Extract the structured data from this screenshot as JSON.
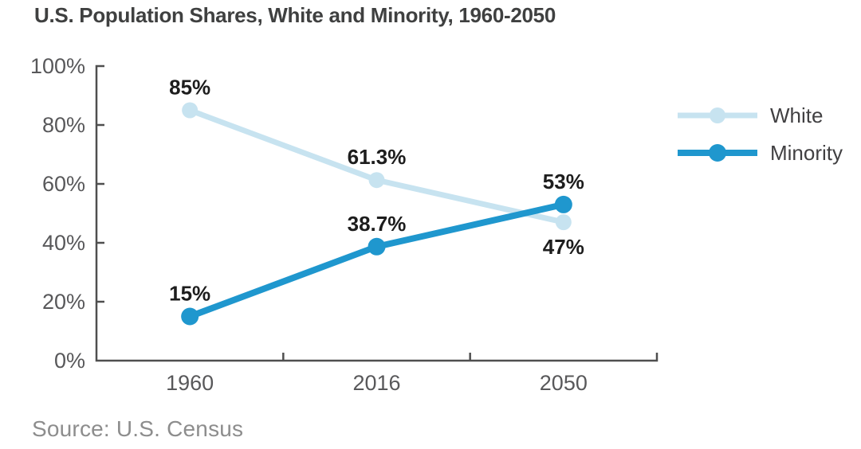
{
  "title": "U.S. Population Shares, White and Minority, 1960-2050",
  "source": "Source: U.S. Census",
  "chart_data": {
    "type": "line",
    "title": "U.S. Population Shares, White and Minority, 1960-2050",
    "categories": [
      "1960",
      "2016",
      "2050"
    ],
    "series": [
      {
        "name": "White",
        "color": "#c7e3f0",
        "values": [
          85,
          61.3,
          47
        ],
        "point_labels": [
          "85%",
          "61.3%",
          "47%"
        ],
        "label_positions": [
          "above",
          "above",
          "below"
        ]
      },
      {
        "name": "Minority",
        "color": "#1f97ce",
        "values": [
          15,
          38.7,
          53
        ],
        "point_labels": [
          "15%",
          "38.7%",
          "53%"
        ],
        "label_positions": [
          "above",
          "above",
          "above"
        ]
      }
    ],
    "xlabel": "",
    "ylabel": "",
    "ylim": [
      0,
      100
    ],
    "y_tick_values": [
      0,
      20,
      40,
      60,
      80,
      100
    ],
    "y_tick_labels": [
      "0%",
      "20%",
      "40%",
      "60%",
      "80%",
      "100%"
    ],
    "grid": false,
    "legend_position": "right",
    "source": "Source: U.S. Census"
  },
  "colors": {
    "white_series": "#c7e3f0",
    "minority_series": "#1f97ce",
    "axis": "#4f4f4f",
    "title_text": "#3f4040",
    "tick_text": "#58585a",
    "data_label_text": "#1d1d1d",
    "legend_text": "#414042",
    "source_text": "#8d8d8d"
  }
}
